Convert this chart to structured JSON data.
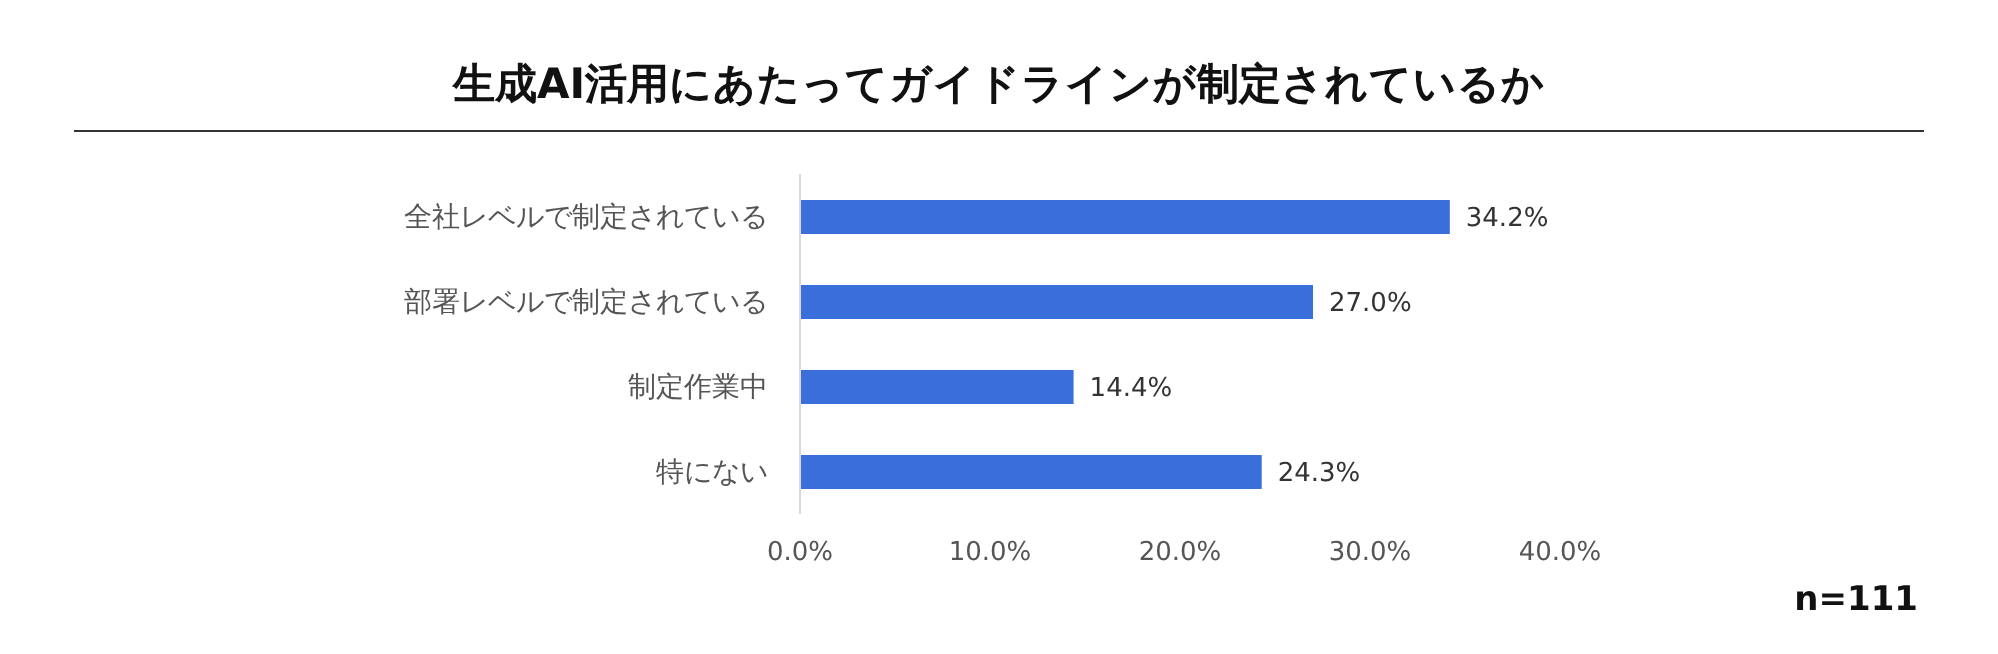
{
  "chart_data": {
    "type": "bar",
    "orientation": "horizontal",
    "title": "生成AI活用にあたってガイドラインが制定されているか",
    "categories": [
      "全社レベルで制定されている",
      "部署レベルで制定されている",
      "制定作業中",
      "特にない"
    ],
    "values": [
      34.2,
      27.0,
      14.4,
      24.3
    ],
    "value_labels": [
      "34.2%",
      "27.0%",
      "14.4%",
      "24.3%"
    ],
    "color": "#3a6fdb",
    "xlim": [
      0,
      40
    ],
    "xticks": [
      {
        "value": 0,
        "label": "0.0%"
      },
      {
        "value": 10,
        "label": "10.0%"
      },
      {
        "value": 20,
        "label": "20.0%"
      },
      {
        "value": 30,
        "label": "30.0%"
      },
      {
        "value": 40,
        "label": "40.0%"
      }
    ],
    "grid": false,
    "legend": false,
    "annotations": [
      "n=111"
    ]
  }
}
